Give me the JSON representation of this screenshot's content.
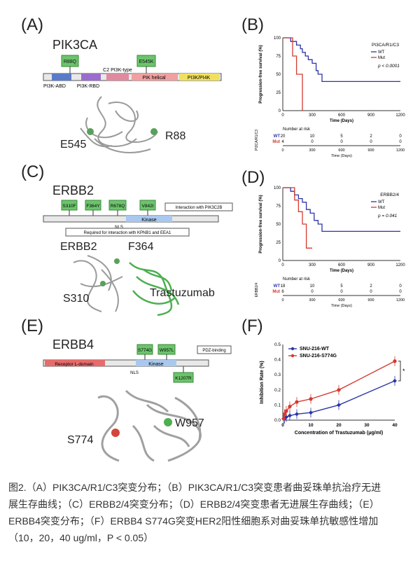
{
  "panels": {
    "A": {
      "letter": "(A)",
      "gene": "PIK3CA",
      "mutations": [
        "R88Q",
        "E545K"
      ],
      "domains": [
        "PI3K-ABD",
        "PI3K-RBD",
        "C2 PI3K-type",
        "PIK helical",
        "PI3K/PI4K"
      ],
      "structure_labels": [
        "E545",
        "R88"
      ]
    },
    "B": {
      "letter": "(B)"
    },
    "C": {
      "letter": "(C)",
      "gene": "ERBB2",
      "mutations": [
        "S310F",
        "F364Y",
        "R678Q",
        "V842I"
      ],
      "domains": [
        "Kinase",
        "NLS"
      ],
      "notes": [
        "Interaction with PIK3C2B",
        "Required for interaction with KPNB1 and EEA1"
      ],
      "structure_labels": [
        "ERBB2",
        "F364",
        "S310",
        "Trastuzumab"
      ]
    },
    "D": {
      "letter": "(D)"
    },
    "E": {
      "letter": "(E)",
      "gene": "ERBB4",
      "mutations": [
        "S774G",
        "W957L",
        "K1207R"
      ],
      "domains": [
        "Receptor L-domain",
        "Kinase",
        "NLS",
        "PDZ-binding"
      ],
      "structure_labels": [
        "W957",
        "S774"
      ]
    },
    "F": {
      "letter": "(F)"
    }
  },
  "chart_data": [
    {
      "type": "line",
      "panel": "B",
      "ylabel": "Progression-free survival (%)",
      "xlabel": "Time (Days)",
      "legend_title": "PI3CA/R1/C3",
      "pvalue": "p < 0.0001",
      "ylim": [
        0,
        100
      ],
      "xlim": [
        0,
        1200
      ],
      "y_ticks": [
        "0",
        "25",
        "50",
        "75",
        "100"
      ],
      "x_ticks": [
        "0",
        "300",
        "600",
        "900",
        "1200"
      ],
      "series": [
        {
          "name": "WT",
          "color": "#2b35a8",
          "x": [
            0,
            40,
            80,
            100,
            140,
            180,
            200,
            230,
            260,
            300,
            340,
            360,
            400,
            1200
          ],
          "y": [
            100,
            100,
            95,
            95,
            90,
            85,
            80,
            75,
            70,
            65,
            55,
            50,
            40,
            40
          ]
        },
        {
          "name": "Mut",
          "color": "#d43a2f",
          "x": [
            0,
            60,
            100,
            120,
            140,
            180,
            200
          ],
          "y": [
            100,
            100,
            75,
            75,
            50,
            50,
            0
          ]
        }
      ],
      "risk_table": {
        "title": "Number at risk",
        "side_label": "PI3CA/R1/C3",
        "rows": [
          {
            "label": "WT",
            "values": [
              "20",
              "10",
              "5",
              "2",
              "0"
            ]
          },
          {
            "label": "Mut",
            "values": [
              "4",
              "0",
              "0",
              "0",
              "0"
            ]
          }
        ],
        "x_ticks": [
          "0",
          "300",
          "600",
          "900",
          "1200"
        ],
        "xlabel": "Time (Days)"
      }
    },
    {
      "type": "line",
      "panel": "D",
      "ylabel": "Progression-free survival (%)",
      "xlabel": "Time (Days)",
      "legend_title": "ERBB2/4",
      "pvalue": "p = 0.041",
      "ylim": [
        0,
        100
      ],
      "xlim": [
        0,
        1200
      ],
      "y_ticks": [
        "0",
        "25",
        "50",
        "75",
        "100"
      ],
      "x_ticks": [
        "0",
        "300",
        "600",
        "900",
        "1200"
      ],
      "series": [
        {
          "name": "WT",
          "color": "#2b35a8",
          "x": [
            0,
            40,
            80,
            120,
            160,
            200,
            240,
            280,
            320,
            360,
            400,
            1200
          ],
          "y": [
            100,
            100,
            95,
            90,
            85,
            80,
            70,
            65,
            55,
            50,
            40,
            40
          ]
        },
        {
          "name": "Mut",
          "color": "#d43a2f",
          "x": [
            0,
            80,
            120,
            160,
            200,
            240,
            300
          ],
          "y": [
            100,
            100,
            83,
            67,
            50,
            17,
            17
          ]
        }
      ],
      "risk_table": {
        "title": "Number at risk",
        "side_label": "ERBB2/4",
        "rows": [
          {
            "label": "WT",
            "values": [
              "18",
              "10",
              "5",
              "2",
              "0"
            ]
          },
          {
            "label": "Mut",
            "values": [
              "6",
              "0",
              "0",
              "0",
              "0"
            ]
          }
        ],
        "x_ticks": [
          "0",
          "300",
          "600",
          "900",
          "1200"
        ],
        "xlabel": "Time (Days)"
      }
    },
    {
      "type": "line",
      "panel": "F",
      "ylabel": "Inhibition Rate (%)",
      "xlabel": "Concentration of Trastuzumab (μg/ml)",
      "ylim": [
        0,
        0.5
      ],
      "xlim": [
        0,
        40
      ],
      "y_ticks": [
        "0.0",
        "0.1",
        "0.2",
        "0.3",
        "0.4",
        "0.5"
      ],
      "x_ticks": [
        "0",
        "10",
        "20",
        "30",
        "40"
      ],
      "significance": "*",
      "x": [
        0.3,
        0.6,
        1.25,
        2.5,
        5,
        10,
        20,
        40
      ],
      "series": [
        {
          "name": "SNU-216-WT",
          "color": "#2b35a8",
          "values": [
            0.01,
            0.01,
            0.02,
            0.03,
            0.04,
            0.05,
            0.1,
            0.26
          ]
        },
        {
          "name": "SNU-216-S774G",
          "color": "#d43a2f",
          "values": [
            0.01,
            0.04,
            0.06,
            0.09,
            0.12,
            0.14,
            0.2,
            0.39
          ]
        }
      ]
    }
  ],
  "caption": {
    "lines": [
      "图2.（A）PIK3CA/R1/C3突变分布；（B）PIK3CA/R1/C3突变患者曲妥珠单抗治疗无进",
      "展生存曲线；（C）ERBB2/4突变分布；（D）ERBB2/4突变患者无进展生存曲线；（E）",
      "ERBB4突变分布；（F）ERBB4 S774G突变HER2阳性细胞系对曲妥珠单抗敏感性增加",
      "（10，20，40 ug/ml，P < 0.05）"
    ]
  }
}
